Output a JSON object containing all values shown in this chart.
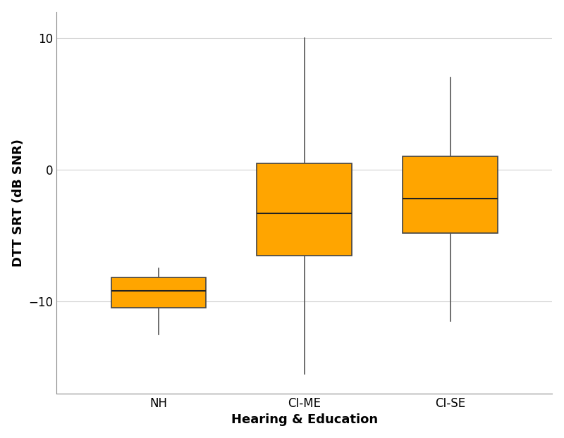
{
  "categories": [
    "NH",
    "CI-ME",
    "CI-SE"
  ],
  "box_data": {
    "NH": {
      "q1": -10.5,
      "median": -9.2,
      "q3": -8.2,
      "whislo": -12.5,
      "whishi": -7.5
    },
    "CI-ME": {
      "q1": -6.5,
      "median": -3.3,
      "q3": 0.5,
      "whislo": -15.5,
      "whishi": 10.0
    },
    "CI-SE": {
      "q1": -4.8,
      "median": -2.2,
      "q3": 1.0,
      "whislo": -11.5,
      "whishi": 7.0
    }
  },
  "box_color": "#FFA500",
  "box_edge_color": "#444444",
  "median_color": "#222222",
  "whisker_color": "#555555",
  "xlabel": "Hearing & Education",
  "ylabel": "DTT SRT (dB SNR)",
  "ylim": [
    -17,
    12
  ],
  "yticks": [
    -10,
    0,
    10
  ],
  "background_color": "#ffffff",
  "plot_bg_color": "#ffffff",
  "grid_color": "#d0d0d0",
  "label_fontsize": 13,
  "tick_fontsize": 12,
  "box_width": 0.65,
  "linewidth": 1.2,
  "median_linewidth": 1.5
}
